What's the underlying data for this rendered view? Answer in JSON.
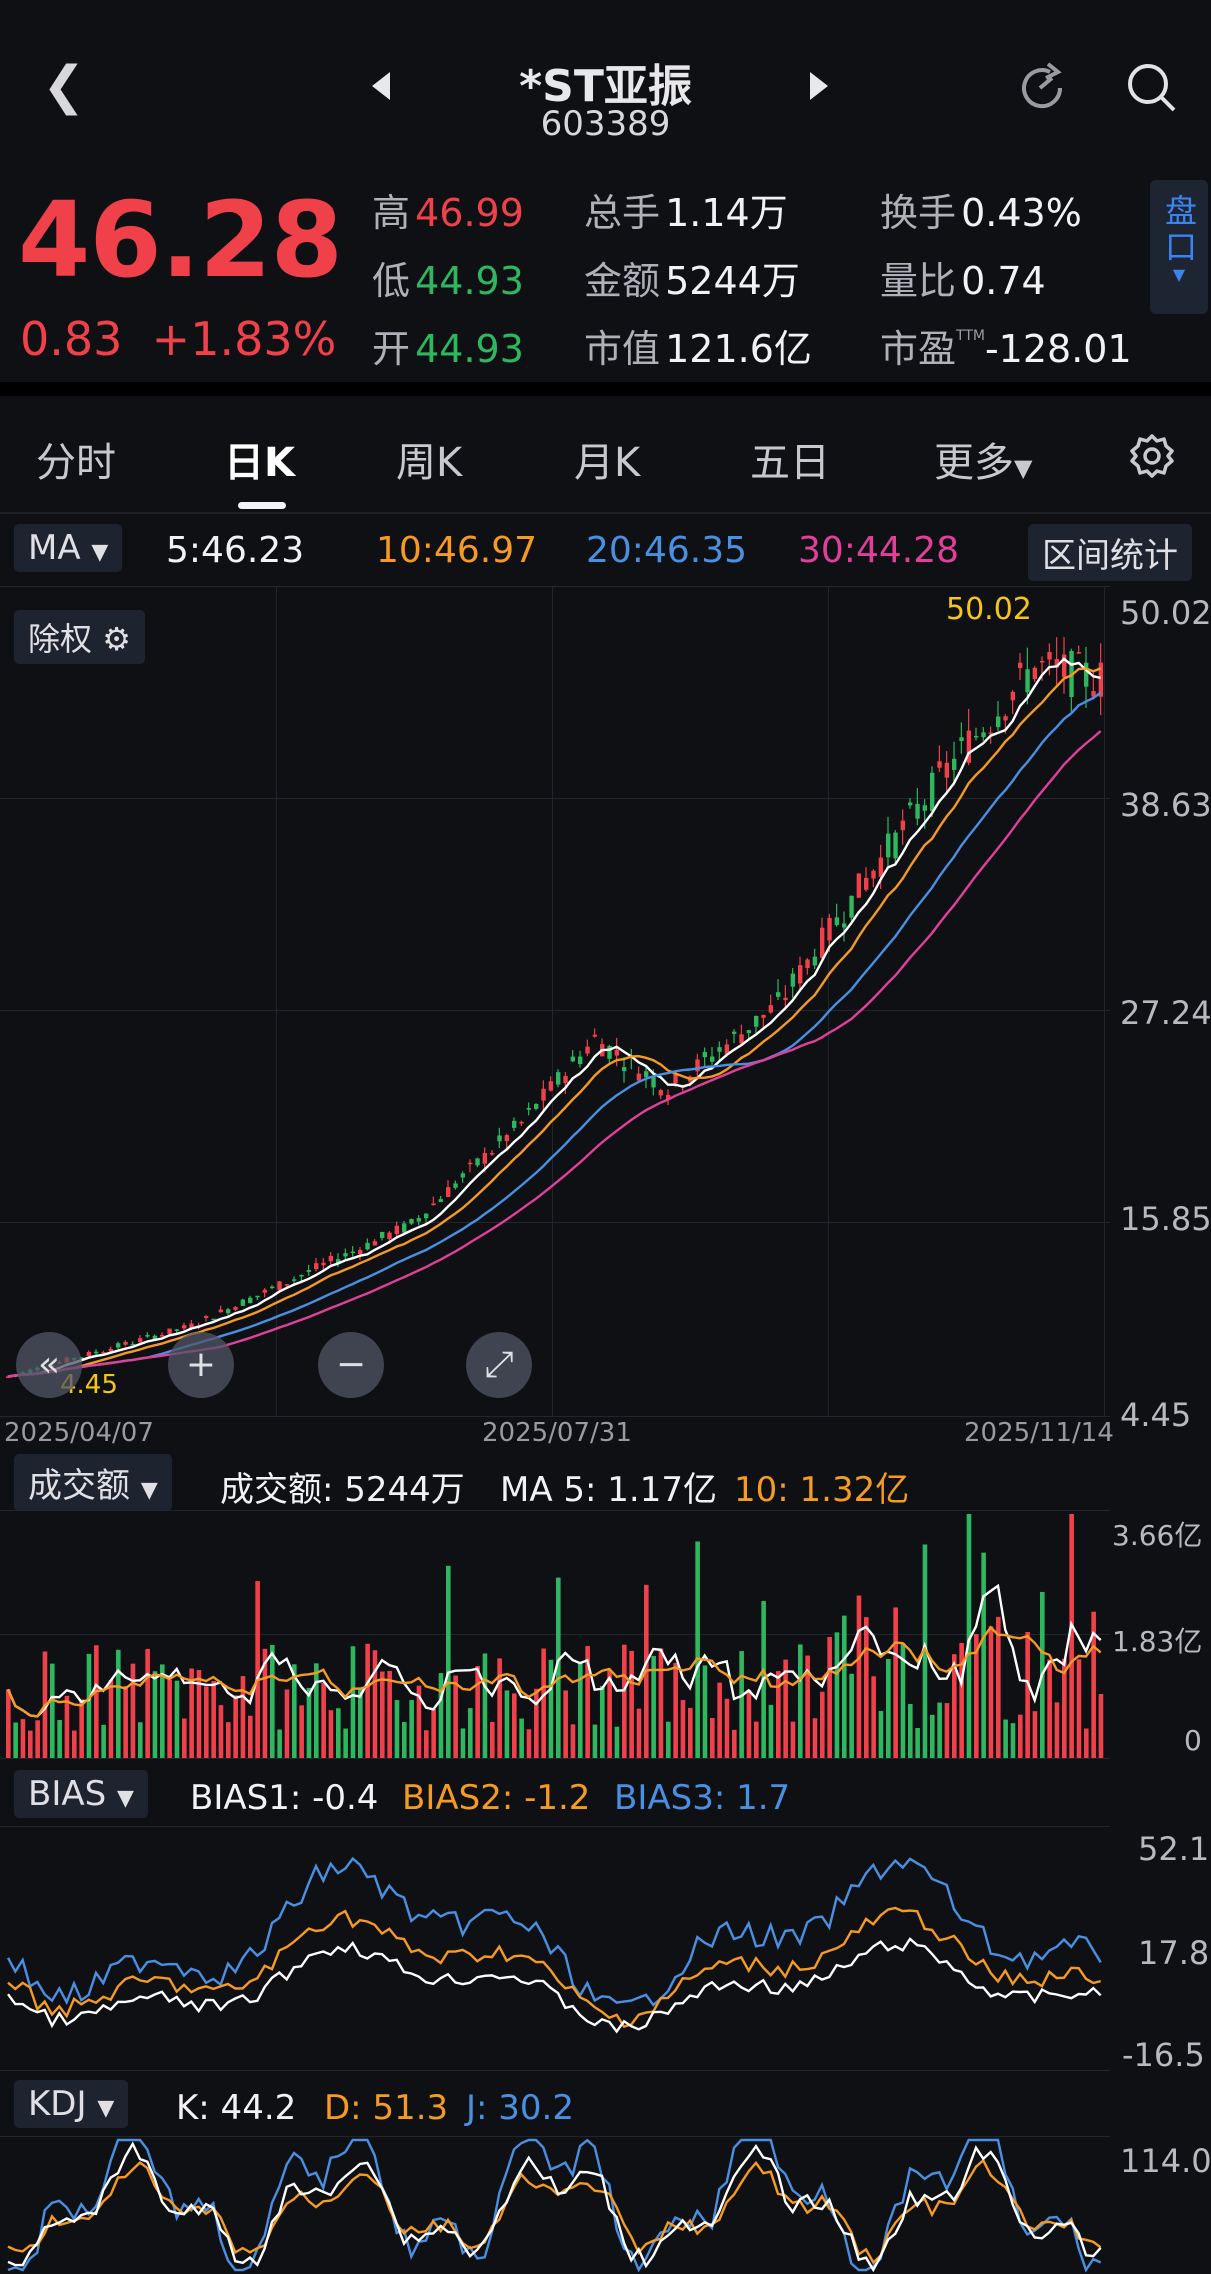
{
  "header": {
    "back_icon": "chevron-left-icon",
    "title": "*ST亚振",
    "code": "603389",
    "refresh_icon": "refresh-icon",
    "search_icon": "search-icon"
  },
  "quote": {
    "price": "46.28",
    "change": "0.83",
    "change_pct": "+1.83%",
    "high_label": "高",
    "high": "46.99",
    "low_label": "低",
    "low": "44.93",
    "open_label": "开",
    "open": "44.93",
    "volume_label": "总手",
    "volume": "1.14万",
    "amount_label": "金额",
    "amount": "5244万",
    "mktcap_label": "市值",
    "mktcap": "121.6亿",
    "turnover_label": "换手",
    "turnover": "0.43%",
    "vol_ratio_label": "量比",
    "vol_ratio": "0.74",
    "pe_label": "市盈",
    "pe_sup": "TTM",
    "pe": "-128.01",
    "panko_label": "盘口"
  },
  "tabs": [
    "分时",
    "日K",
    "周K",
    "月K",
    "五日",
    "更多"
  ],
  "active_tab": "日K",
  "ma_row": {
    "selector": "MA",
    "ma5": "5:46.23",
    "ma10": "10:46.97",
    "ma20": "20:46.35",
    "ma30": "30:44.28",
    "range_button": "区间统计"
  },
  "kline": {
    "adjust_label": "除权",
    "max_label": "50.02",
    "min_label": "4.45",
    "y_ticks": [
      "50.02",
      "38.63",
      "27.24",
      "15.85",
      "4.45"
    ],
    "dates": [
      "2025/04/07",
      "2025/07/31",
      "2025/11/14"
    ]
  },
  "volume": {
    "selector": "成交额",
    "amount_text": "成交额: 5244万",
    "ma5_text": "MA 5: 1.17亿",
    "ma10_text": "10: 1.32亿",
    "y_ticks": [
      "3.66亿",
      "1.83亿",
      "0"
    ]
  },
  "bias": {
    "selector": "BIAS",
    "bias1": "BIAS1: -0.4",
    "bias2": "BIAS2: -1.2",
    "bias3": "BIAS3: 1.7",
    "y_ticks": [
      "52.1",
      "17.8",
      "-16.5"
    ]
  },
  "kdj": {
    "selector": "KDJ",
    "k": "K: 44.2",
    "d": "D: 51.3",
    "j": "J: 30.2",
    "y_ticks": [
      "114.0"
    ]
  },
  "colors": {
    "up": "#f0414b",
    "down": "#2fb760",
    "ma5": "#ffffff",
    "ma10": "#f59a23",
    "ma20": "#4a90e2",
    "ma30": "#e0409a",
    "accent": "#3d83f0",
    "max_label": "#f5c518"
  }
}
